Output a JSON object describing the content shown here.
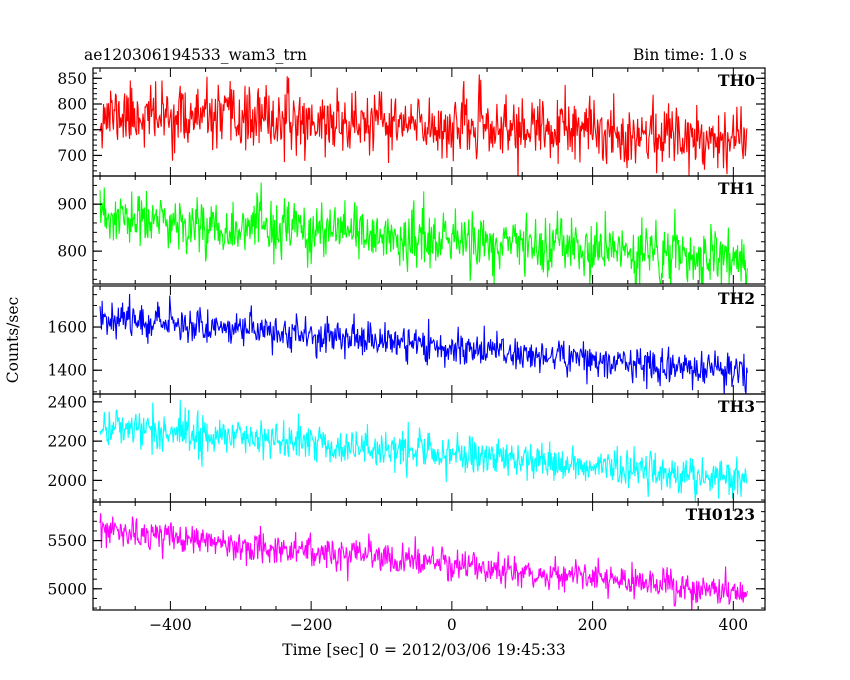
{
  "header": {
    "title": "ae120306194533_wam3_trn",
    "bin_time": "Bin time: 1.0 s"
  },
  "chart_data": {
    "type": "line",
    "xlabel": "Time [sec] 0 = 2012/03/06 19:45:33",
    "ylabel": "Counts/sec",
    "xlim": [
      -510,
      445
    ],
    "x_range": [
      -500,
      420
    ],
    "x_step": 1,
    "x_ticks": [
      -400,
      -200,
      0,
      200,
      400
    ],
    "x_tick_labels": [
      "−400",
      "−200",
      "0",
      "200",
      "400"
    ],
    "panels": [
      {
        "name": "TH0",
        "color": "#ff0000",
        "ylim": [
          660,
          870
        ],
        "y_ticks": [
          700,
          750,
          800,
          850
        ],
        "y_tick_labels": [
          "700",
          "750",
          "800",
          "850"
        ],
        "trend": [
          780,
          735
        ],
        "noise_sd": 30,
        "seed": 11
      },
      {
        "name": "TH1",
        "color": "#00ff00",
        "ylim": [
          730,
          960
        ],
        "y_ticks": [
          800,
          900
        ],
        "y_tick_labels": [
          "800",
          "900"
        ],
        "trend": [
          870,
          780
        ],
        "noise_sd": 30,
        "seed": 23
      },
      {
        "name": "TH2",
        "color": "#0000ff",
        "ylim": [
          1290,
          1790
        ],
        "y_ticks": [
          1400,
          1600
        ],
        "y_tick_labels": [
          "1400",
          "1600"
        ],
        "trend": [
          1650,
          1385
        ],
        "noise_sd": 40,
        "seed": 37
      },
      {
        "name": "TH3",
        "color": "#00ffff",
        "ylim": [
          1890,
          2440
        ],
        "y_ticks": [
          2000,
          2200,
          2400
        ],
        "y_tick_labels": [
          "2000",
          "2200",
          "2400"
        ],
        "trend": [
          2280,
          2010
        ],
        "noise_sd": 50,
        "seed": 41
      },
      {
        "name": "TH0123",
        "color": "#ff00ff",
        "ylim": [
          4780,
          5900
        ],
        "y_ticks": [
          5000,
          5500
        ],
        "y_tick_labels": [
          "5000",
          "5500"
        ],
        "trend": [
          5600,
          4950
        ],
        "noise_sd": 80,
        "seed": 53
      }
    ]
  }
}
